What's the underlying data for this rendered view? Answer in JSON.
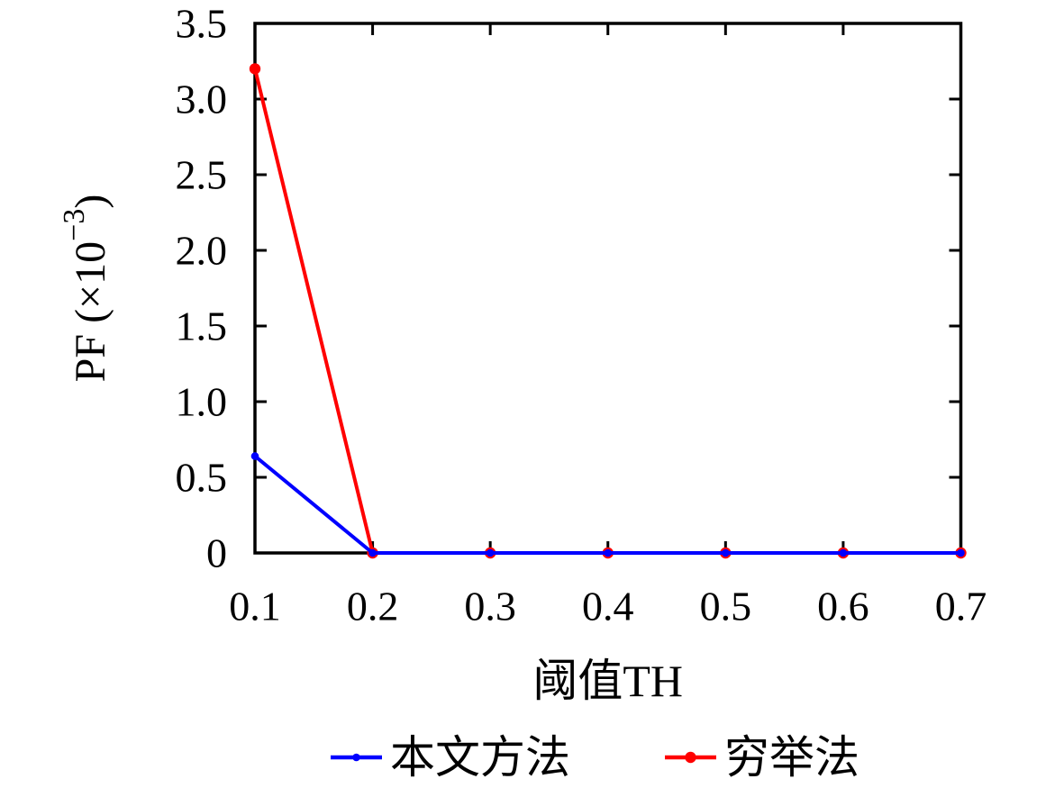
{
  "page": {
    "background": "#ffffff"
  },
  "colors": {
    "axis": "#000000",
    "background": "#ffffff",
    "series_blue": "#0000ff",
    "series_red": "#ff0000"
  },
  "chart_data": {
    "type": "line",
    "title": "",
    "xlabel": "阈值TH",
    "ylabel": {
      "plain": "PF (×10⁻³)",
      "base": "PF (×10",
      "superscript": "−3",
      "suffix": ")"
    },
    "xlim": [
      0.1,
      0.7
    ],
    "ylim": [
      0,
      3.5
    ],
    "grid": false,
    "legend_position": "bottom-center",
    "x": [
      0.1,
      0.2,
      0.3,
      0.4,
      0.5,
      0.6,
      0.7
    ],
    "xticks": [
      {
        "value": 0.1,
        "label": "0.1"
      },
      {
        "value": 0.2,
        "label": "0.2"
      },
      {
        "value": 0.3,
        "label": "0.3"
      },
      {
        "value": 0.4,
        "label": "0.4"
      },
      {
        "value": 0.5,
        "label": "0.5"
      },
      {
        "value": 0.6,
        "label": "0.6"
      },
      {
        "value": 0.7,
        "label": "0.7"
      }
    ],
    "yticks": [
      {
        "value": 0.0,
        "label": "0"
      },
      {
        "value": 0.5,
        "label": "0.5"
      },
      {
        "value": 1.0,
        "label": "1.0"
      },
      {
        "value": 1.5,
        "label": "1.5"
      },
      {
        "value": 2.0,
        "label": "2.0"
      },
      {
        "value": 2.5,
        "label": "2.5"
      },
      {
        "value": 3.0,
        "label": "3.0"
      },
      {
        "value": 3.5,
        "label": "3.5"
      }
    ],
    "y_scale_note": "y values are read in units of ×10⁻³ as shown on the y-axis label",
    "series": [
      {
        "id": "proposed-method",
        "name": "本文方法",
        "color": "#0000ff",
        "marker": "filled-circle",
        "marker_radius": 4.3,
        "line_width": 4,
        "values": [
          0.64,
          0,
          0,
          0,
          0,
          0,
          0
        ]
      },
      {
        "id": "exhaustive-method",
        "name": "穷举法",
        "color": "#ff0000",
        "marker": "filled-circle",
        "marker_radius": 6.2,
        "line_width": 4,
        "values": [
          3.2,
          0,
          0,
          0,
          0,
          0,
          0
        ]
      }
    ]
  }
}
